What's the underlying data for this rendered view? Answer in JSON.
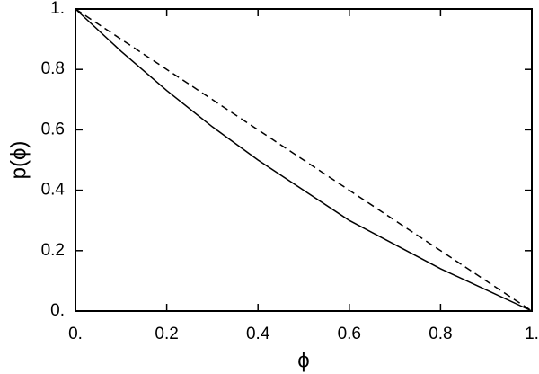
{
  "chart_data": {
    "type": "line",
    "x_label": "ϕ",
    "y_label": "p(ϕ)",
    "x": [
      0,
      0.1,
      0.2,
      0.3,
      0.4,
      0.5,
      0.6,
      0.7,
      0.8,
      0.9,
      1
    ],
    "series": [
      {
        "style": "solid",
        "color": "#000000",
        "values": [
          1,
          0.86,
          0.73,
          0.61,
          0.5,
          0.4,
          0.3,
          0.22,
          0.14,
          0.07,
          0
        ]
      },
      {
        "style": "dashed",
        "color": "#000000",
        "values": [
          1,
          0.9,
          0.8,
          0.7,
          0.6,
          0.5,
          0.4,
          0.3,
          0.2,
          0.1,
          0
        ]
      }
    ],
    "xlim": [
      0,
      1
    ],
    "ylim": [
      0,
      1
    ],
    "xticks": [
      {
        "value": 0,
        "label": "0."
      },
      0.2,
      0.4,
      0.6,
      0.8,
      {
        "value": 1,
        "label": "1."
      }
    ],
    "yticks": [
      {
        "value": 0,
        "label": "0."
      },
      0.2,
      0.4,
      0.6,
      0.8,
      {
        "value": 1,
        "label": "1."
      }
    ],
    "grid": false
  }
}
